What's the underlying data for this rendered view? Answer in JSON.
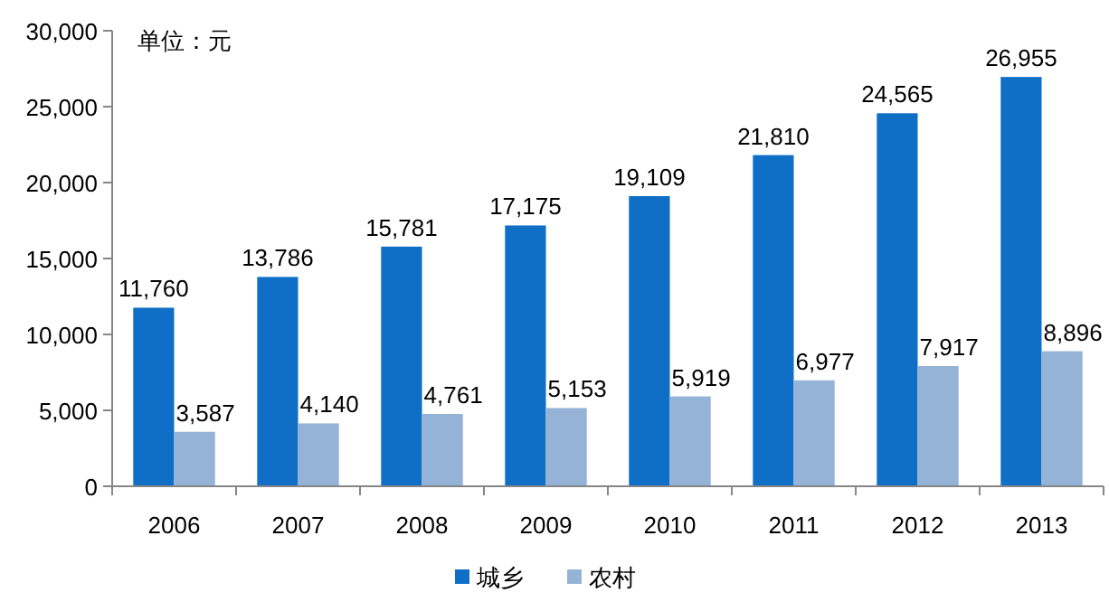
{
  "chart_data": {
    "type": "bar",
    "categories": [
      "2006",
      "2007",
      "2008",
      "2009",
      "2010",
      "2011",
      "2012",
      "2013"
    ],
    "series": [
      {
        "name": "城乡",
        "color": "#0f6fc6",
        "values": [
          11760,
          13786,
          15781,
          17175,
          19109,
          21810,
          24565,
          26955
        ],
        "value_labels": [
          "11,760",
          "13,786",
          "15,781",
          "17,175",
          "19,109",
          "21,810",
          "24,565",
          "26,955"
        ]
      },
      {
        "name": "农村",
        "color": "#95b3d7",
        "values": [
          3587,
          4140,
          4761,
          5153,
          5919,
          6977,
          7917,
          8896
        ],
        "value_labels": [
          "3,587",
          "4,140",
          "4,761",
          "5,153",
          "5,919",
          "6,977",
          "7,917",
          "8,896"
        ]
      }
    ],
    "ylim": [
      0,
      30000
    ],
    "yticks": [
      {
        "value": 0,
        "label": "0"
      },
      {
        "value": 5000,
        "label": "5,000"
      },
      {
        "value": 10000,
        "label": "10,000"
      },
      {
        "value": 15000,
        "label": "15,000"
      },
      {
        "value": 20000,
        "label": "20,000"
      },
      {
        "value": 25000,
        "label": "25,000"
      },
      {
        "value": 30000,
        "label": "30,000"
      }
    ],
    "annotations": [
      "单位：元"
    ],
    "grid": false,
    "legend": "bottom"
  }
}
